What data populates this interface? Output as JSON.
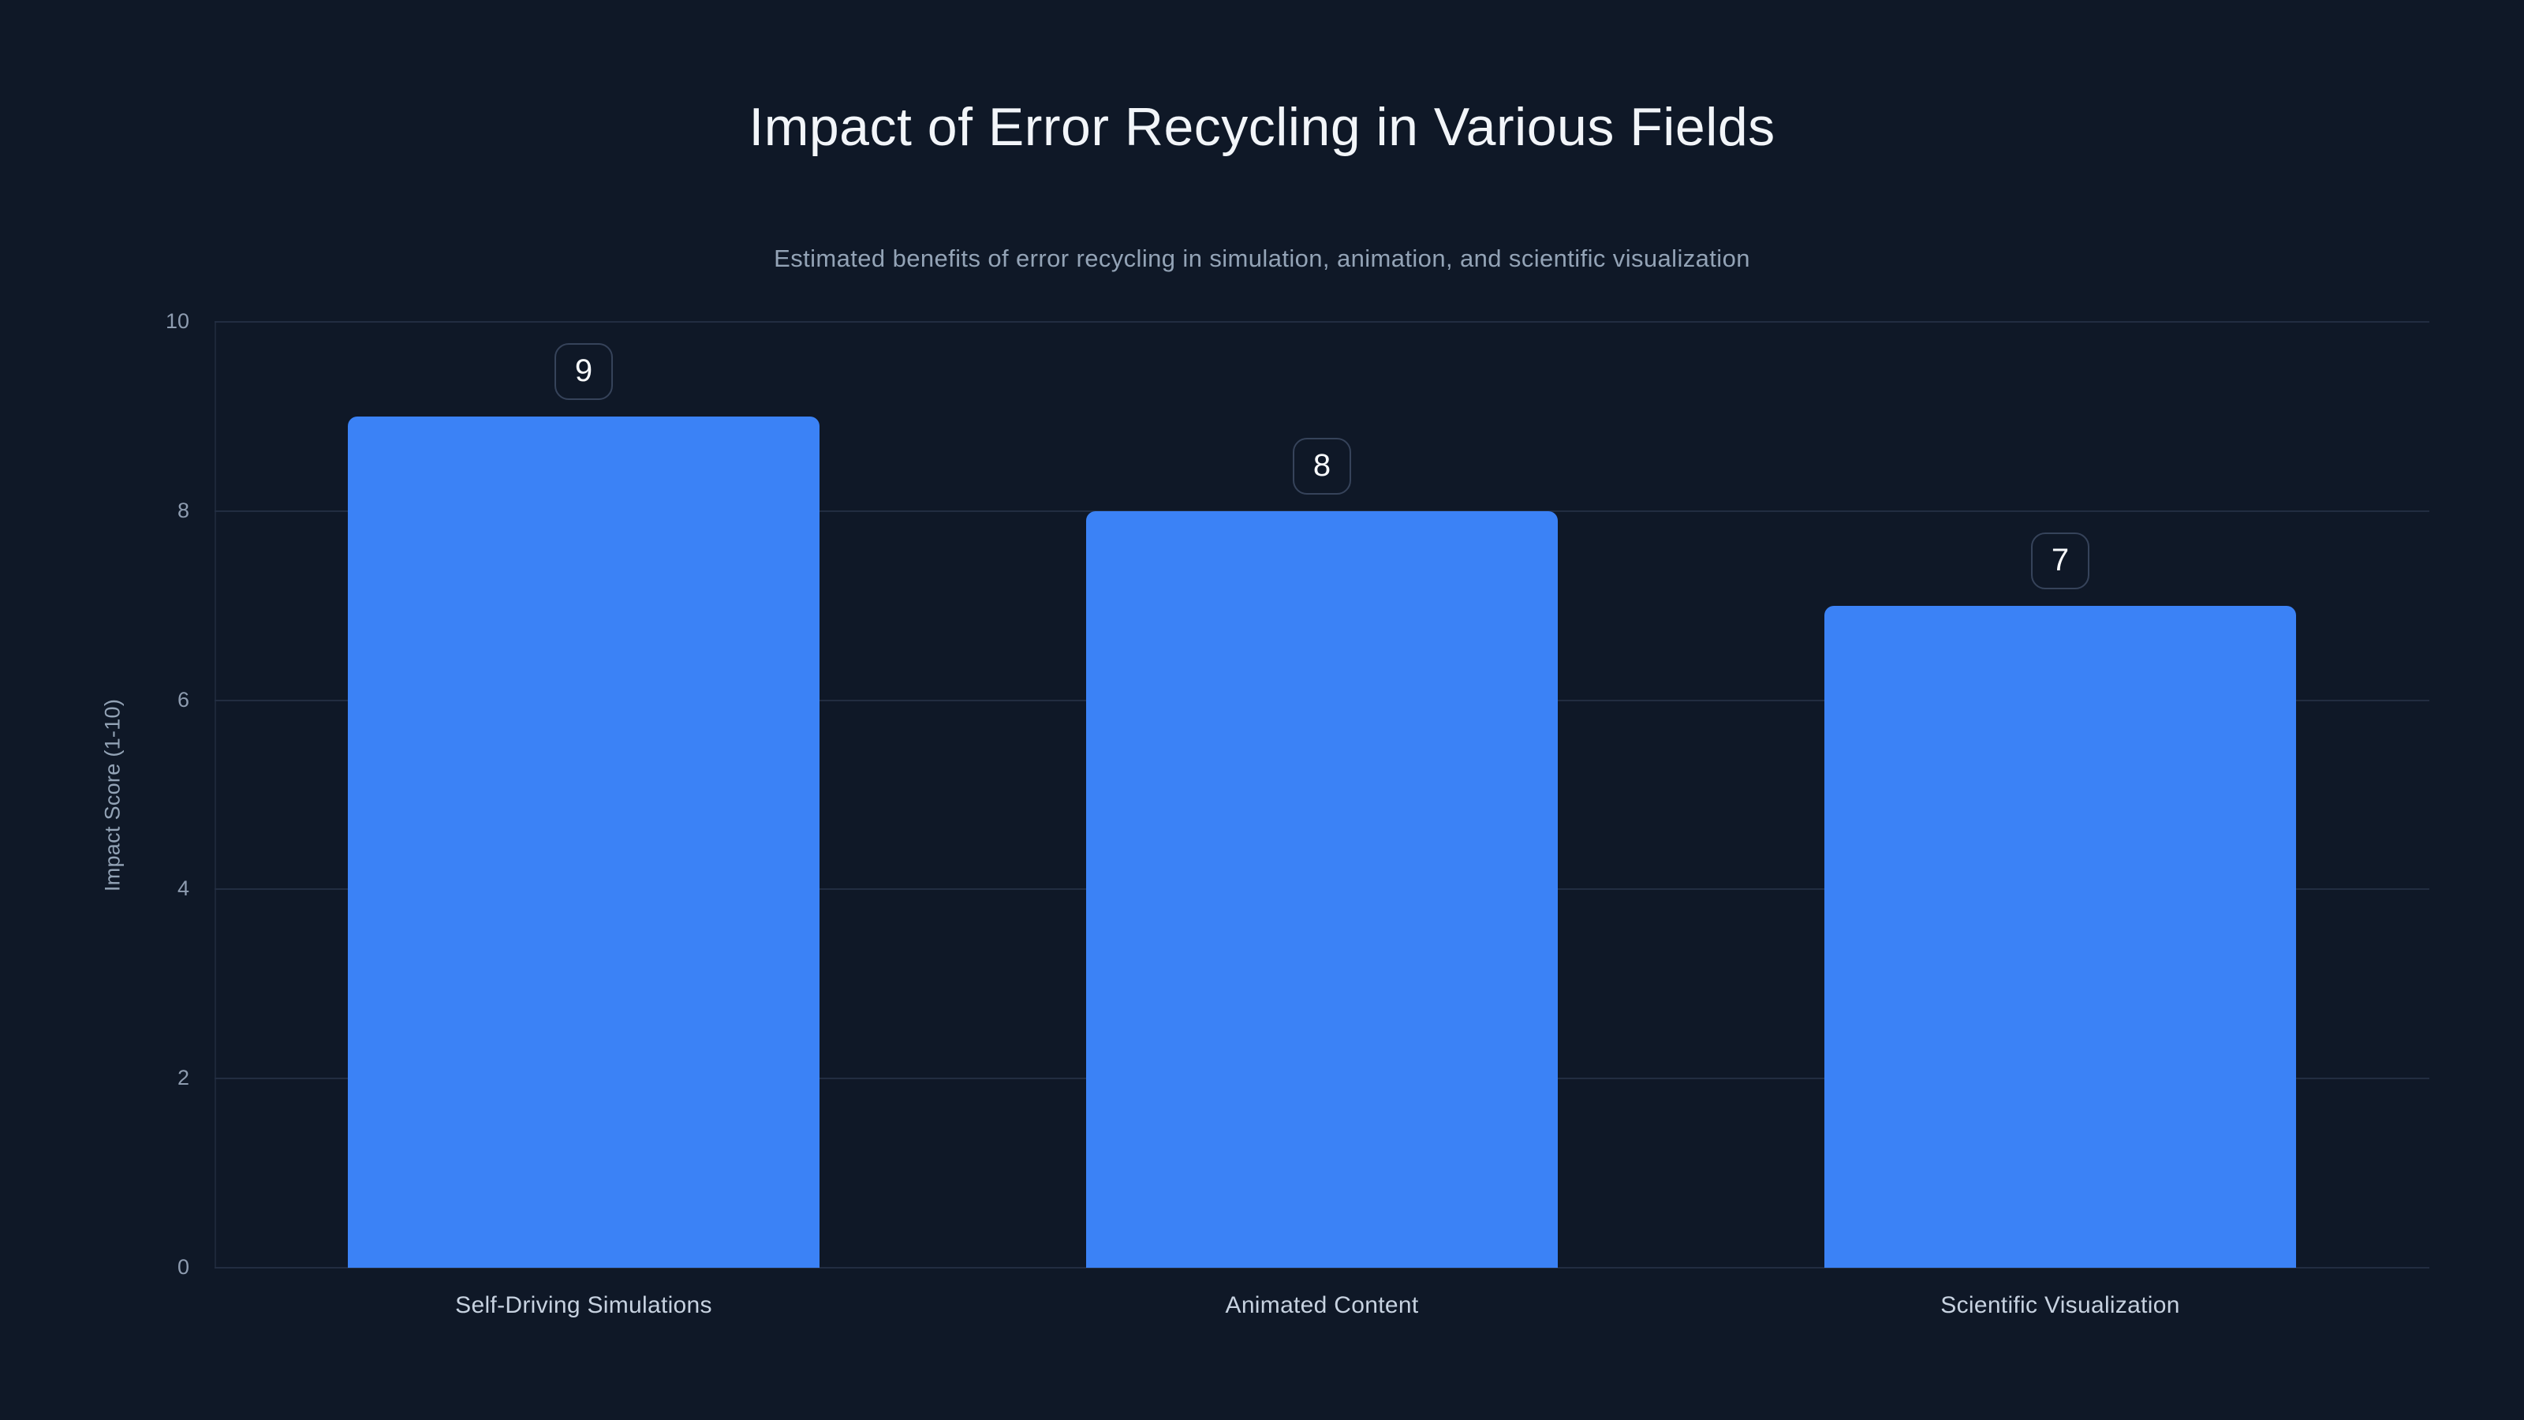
{
  "header": {
    "title": "Impact of Error Recycling in Various Fields",
    "subtitle": "Estimated benefits of error recycling in simulation, animation, and scientific visualization"
  },
  "chart_data": {
    "type": "bar",
    "title": "Impact of Error Recycling in Various Fields",
    "subtitle": "Estimated benefits of error recycling in simulation, animation, and scientific visualization",
    "categories": [
      "Self-Driving Simulations",
      "Animated Content",
      "Scientific Visualization"
    ],
    "values": [
      9,
      8,
      7
    ],
    "value_labels": [
      "9",
      "8",
      "7"
    ],
    "xlabel": "",
    "ylabel": "Impact Score (1-10)",
    "ylim": [
      0,
      10
    ],
    "yticks": [
      0,
      2,
      4,
      6,
      8,
      10
    ],
    "grid": true,
    "legend": false,
    "bar_color": "#3b82f6"
  },
  "colors": {
    "background": "#0f1827",
    "bar": "#3b82f6",
    "gridline": "#222d41",
    "title_text": "#f2f5f9",
    "subtitle_text": "#93a3b6",
    "tick_text": "#8e9cb0",
    "category_text": "#c7d2e0",
    "badge_border": "#36435a",
    "badge_text": "#f8fafc"
  }
}
